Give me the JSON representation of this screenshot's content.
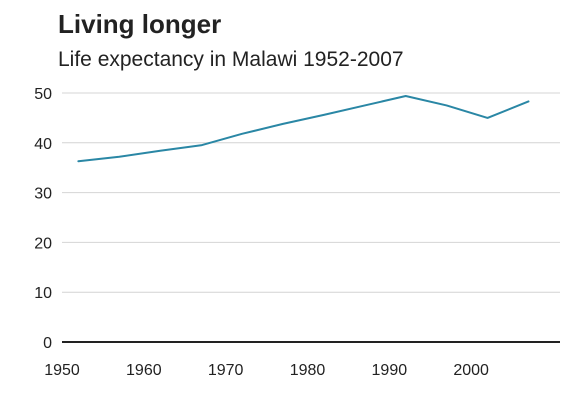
{
  "chart_data": {
    "type": "line",
    "title": "Living longer",
    "subtitle": "Life expectancy in Malawi 1952-2007",
    "xlabel": "",
    "ylabel": "",
    "xlim": [
      1950,
      2010
    ],
    "ylim": [
      0,
      50
    ],
    "x_ticks": [
      1950,
      1960,
      1970,
      1980,
      1990,
      2000
    ],
    "y_ticks": [
      0,
      10,
      20,
      30,
      40,
      50
    ],
    "grid": true,
    "legend": "none",
    "series": [
      {
        "color": "#2a87a5",
        "x": [
          1952,
          1957,
          1962,
          1967,
          1972,
          1977,
          1982,
          1987,
          1992,
          1997,
          2002,
          2007
        ],
        "y": [
          36.3,
          37.2,
          38.4,
          39.5,
          41.8,
          43.8,
          45.6,
          47.5,
          49.4,
          47.5,
          45.0,
          48.3
        ]
      }
    ],
    "colors": {
      "grid": "#d4d4d4",
      "baseline": "#222222",
      "line": "#2a87a5"
    }
  }
}
